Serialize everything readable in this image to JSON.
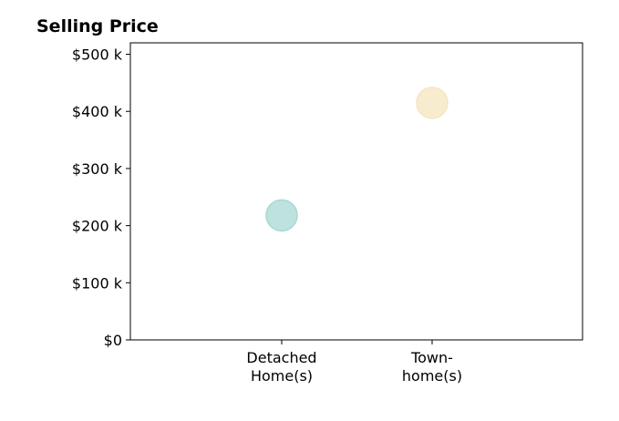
{
  "chart_data": {
    "type": "scatter",
    "title": "Selling Price",
    "xlabel": "",
    "ylabel": "",
    "categories": [
      [
        "Detached",
        "Home(s)"
      ],
      [
        "Town-",
        "home(s)"
      ]
    ],
    "points": [
      {
        "category_index": 0,
        "value": 218000,
        "color": "#a8d8d2"
      },
      {
        "category_index": 1,
        "value": 415000,
        "color": "#f6e5bf"
      }
    ],
    "ylim": [
      0,
      520000
    ],
    "yticks": [
      0,
      100000,
      200000,
      300000,
      400000,
      500000
    ],
    "ytick_labels": [
      "$0",
      "$100 k",
      "$200 k",
      "$300 k",
      "$400 k",
      "$500 k"
    ],
    "grid": false,
    "legend": "none"
  }
}
